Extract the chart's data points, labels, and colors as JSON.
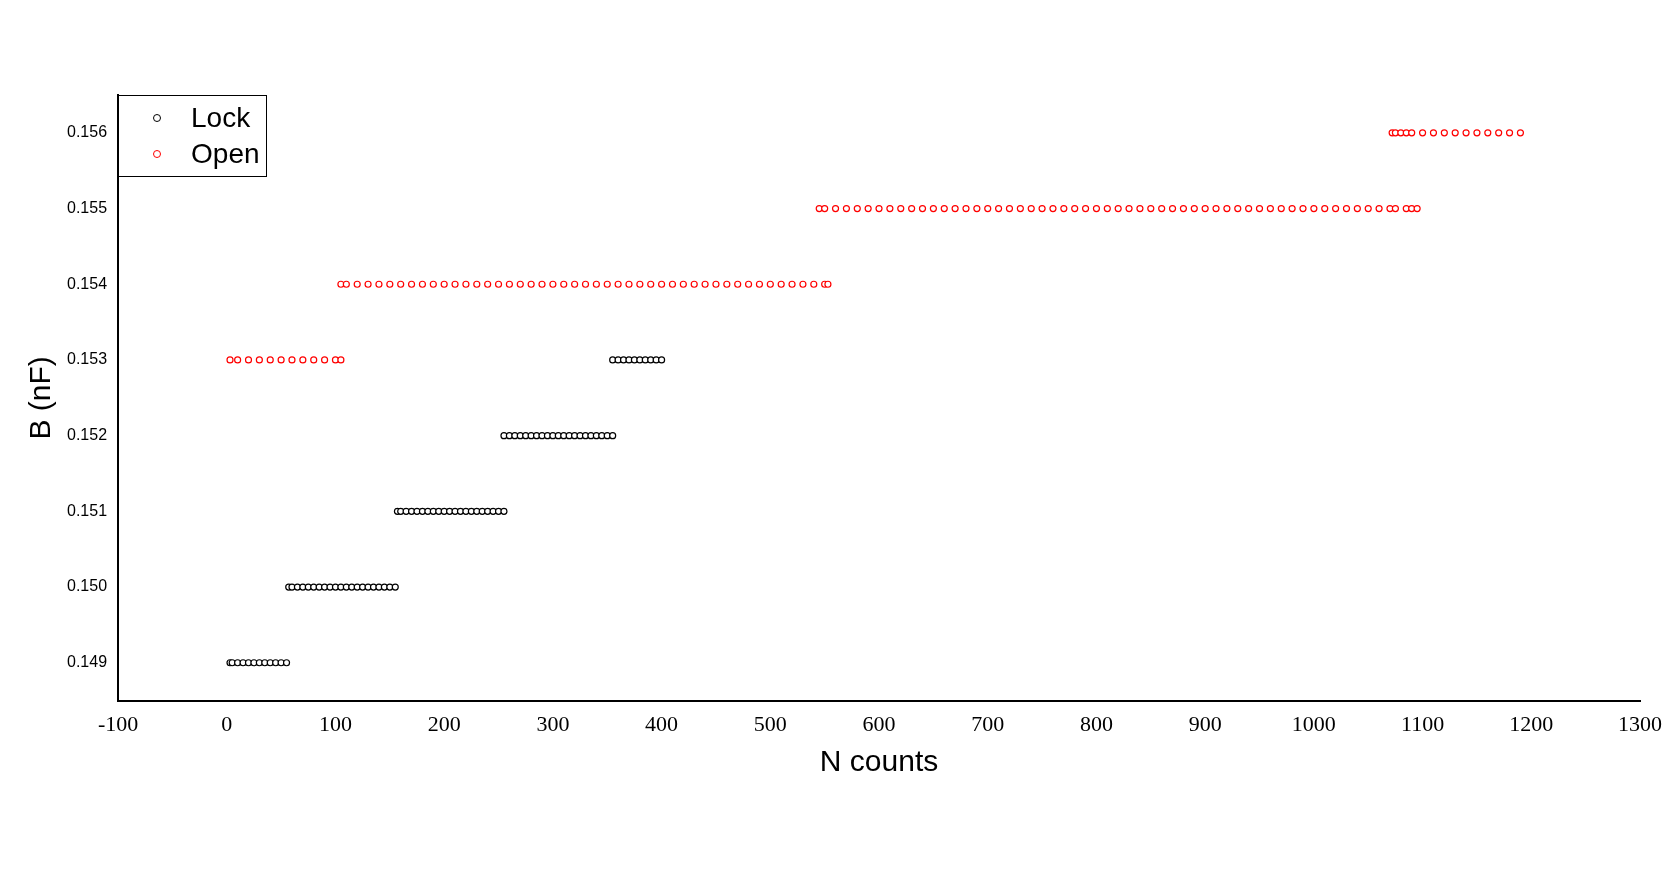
{
  "chart_data": {
    "type": "scatter",
    "xlabel": "N counts",
    "ylabel": "B (nF)",
    "xlim": [
      -100,
      1300
    ],
    "xticks": [
      -100,
      0,
      100,
      200,
      300,
      400,
      500,
      600,
      700,
      800,
      900,
      1000,
      1100,
      1200,
      1300
    ],
    "ylim": [
      0.1485,
      0.1565
    ],
    "yticks": [
      0.149,
      {
        "value": 0.15,
        "label": "0.150"
      },
      0.151,
      0.152,
      0.153,
      0.154,
      0.155,
      0.156
    ],
    "grid": false,
    "legend": "top left",
    "marker": "circle",
    "series": [
      {
        "name": "Lock",
        "color": "#000000",
        "x": [
          3,
          5,
          10,
          15,
          20,
          25,
          30,
          35,
          40,
          45,
          50,
          55,
          57,
          60,
          65,
          70,
          75,
          80,
          85,
          90,
          95,
          100,
          105,
          110,
          115,
          120,
          125,
          130,
          135,
          140,
          145,
          150,
          155,
          157,
          160,
          165,
          170,
          175,
          180,
          185,
          190,
          195,
          200,
          205,
          210,
          215,
          220,
          225,
          230,
          235,
          240,
          245,
          250,
          255,
          255,
          260,
          265,
          270,
          275,
          280,
          285,
          290,
          295,
          300,
          305,
          310,
          315,
          320,
          325,
          330,
          335,
          340,
          345,
          350,
          355,
          355,
          360,
          365,
          370,
          375,
          380,
          385,
          390,
          395,
          400
        ],
        "values": [
          0.149,
          0.149,
          0.149,
          0.149,
          0.149,
          0.149,
          0.149,
          0.149,
          0.149,
          0.149,
          0.149,
          0.149,
          0.15,
          0.15,
          0.15,
          0.15,
          0.15,
          0.15,
          0.15,
          0.15,
          0.15,
          0.15,
          0.15,
          0.15,
          0.15,
          0.15,
          0.15,
          0.15,
          0.15,
          0.15,
          0.15,
          0.15,
          0.15,
          0.151,
          0.151,
          0.151,
          0.151,
          0.151,
          0.151,
          0.151,
          0.151,
          0.151,
          0.151,
          0.151,
          0.151,
          0.151,
          0.151,
          0.151,
          0.151,
          0.151,
          0.151,
          0.151,
          0.151,
          0.151,
          0.152,
          0.152,
          0.152,
          0.152,
          0.152,
          0.152,
          0.152,
          0.152,
          0.152,
          0.152,
          0.152,
          0.152,
          0.152,
          0.152,
          0.152,
          0.152,
          0.152,
          0.152,
          0.152,
          0.152,
          0.152,
          0.153,
          0.153,
          0.153,
          0.153,
          0.153,
          0.153,
          0.153,
          0.153,
          0.153,
          0.153
        ]
      },
      {
        "name": "Open",
        "color": "#ff0000",
        "x": [
          3,
          10,
          20,
          30,
          40,
          50,
          60,
          70,
          80,
          90,
          100,
          105,
          105,
          110,
          120,
          130,
          140,
          150,
          160,
          170,
          180,
          190,
          200,
          210,
          220,
          230,
          240,
          250,
          260,
          270,
          280,
          290,
          300,
          310,
          320,
          330,
          340,
          350,
          360,
          370,
          380,
          390,
          400,
          410,
          420,
          430,
          440,
          450,
          460,
          470,
          480,
          490,
          500,
          510,
          520,
          530,
          540,
          550,
          553,
          545,
          550,
          560,
          570,
          580,
          590,
          600,
          610,
          620,
          630,
          640,
          650,
          660,
          670,
          680,
          690,
          700,
          710,
          720,
          730,
          740,
          750,
          760,
          770,
          780,
          790,
          800,
          810,
          820,
          830,
          840,
          850,
          860,
          870,
          880,
          890,
          900,
          910,
          920,
          930,
          940,
          950,
          960,
          970,
          980,
          990,
          1000,
          1010,
          1020,
          1030,
          1040,
          1050,
          1060,
          1070,
          1075,
          1085,
          1090,
          1095,
          1072,
          1075,
          1080,
          1085,
          1090,
          1100,
          1110,
          1120,
          1130,
          1140,
          1150,
          1160,
          1170,
          1180,
          1190
        ],
        "values": [
          0.153,
          0.153,
          0.153,
          0.153,
          0.153,
          0.153,
          0.153,
          0.153,
          0.153,
          0.153,
          0.153,
          0.153,
          0.154,
          0.154,
          0.154,
          0.154,
          0.154,
          0.154,
          0.154,
          0.154,
          0.154,
          0.154,
          0.154,
          0.154,
          0.154,
          0.154,
          0.154,
          0.154,
          0.154,
          0.154,
          0.154,
          0.154,
          0.154,
          0.154,
          0.154,
          0.154,
          0.154,
          0.154,
          0.154,
          0.154,
          0.154,
          0.154,
          0.154,
          0.154,
          0.154,
          0.154,
          0.154,
          0.154,
          0.154,
          0.154,
          0.154,
          0.154,
          0.154,
          0.154,
          0.154,
          0.154,
          0.154,
          0.154,
          0.154,
          0.155,
          0.155,
          0.155,
          0.155,
          0.155,
          0.155,
          0.155,
          0.155,
          0.155,
          0.155,
          0.155,
          0.155,
          0.155,
          0.155,
          0.155,
          0.155,
          0.155,
          0.155,
          0.155,
          0.155,
          0.155,
          0.155,
          0.155,
          0.155,
          0.155,
          0.155,
          0.155,
          0.155,
          0.155,
          0.155,
          0.155,
          0.155,
          0.155,
          0.155,
          0.155,
          0.155,
          0.155,
          0.155,
          0.155,
          0.155,
          0.155,
          0.155,
          0.155,
          0.155,
          0.155,
          0.155,
          0.155,
          0.155,
          0.155,
          0.155,
          0.155,
          0.155,
          0.155,
          0.155,
          0.155,
          0.155,
          0.155,
          0.155,
          0.156,
          0.156,
          0.156,
          0.156,
          0.156,
          0.156,
          0.156,
          0.156,
          0.156,
          0.156,
          0.156,
          0.156,
          0.156,
          0.156,
          0.156
        ]
      }
    ]
  }
}
